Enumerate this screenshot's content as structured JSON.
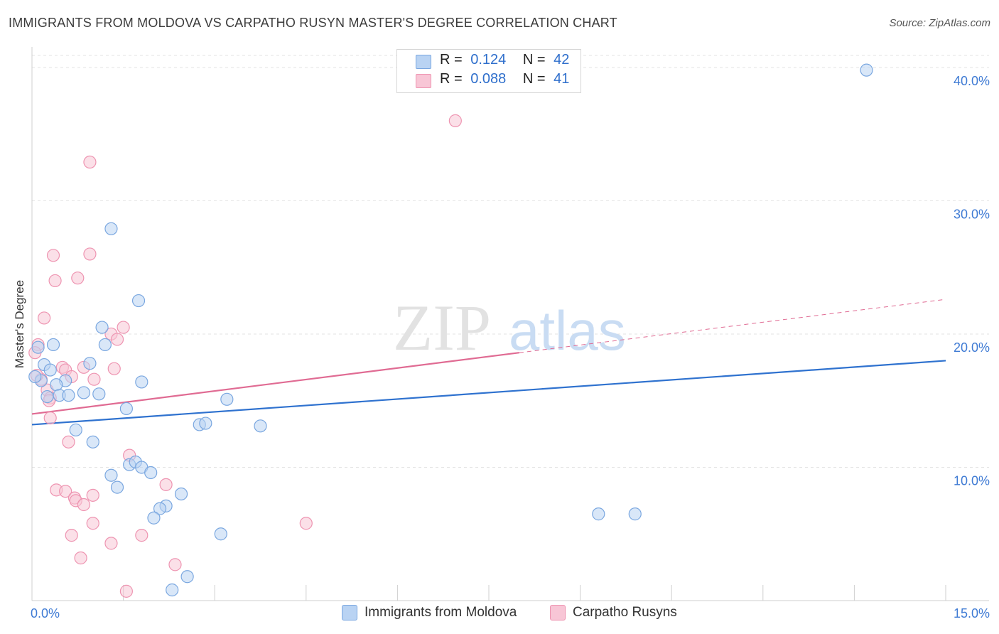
{
  "header": {
    "title": "IMMIGRANTS FROM MOLDOVA VS CARPATHO RUSYN MASTER'S DEGREE CORRELATION CHART",
    "source": "Source: ZipAtlas.com"
  },
  "legend_top": {
    "rows": [
      {
        "r_label": "R =",
        "r_value": "0.124",
        "n_label": "N =",
        "n_value": "42"
      },
      {
        "r_label": "R =",
        "r_value": "0.088",
        "n_label": "N =",
        "n_value": "41"
      }
    ]
  },
  "legend_bottom": {
    "items": [
      "Immigrants from Moldova",
      "Carpatho Rusyns"
    ]
  },
  "watermark": {
    "zip": "ZIP",
    "atlas": "atlas"
  },
  "colors": {
    "blue_fill": "#b9d3f3",
    "blue_stroke": "#7aa7e0",
    "blue_line": "#2f72cf",
    "pink_fill": "#f8c6d6",
    "pink_stroke": "#ee94b1",
    "pink_line": "#e06b93",
    "tick_text": "#3f7bd4",
    "grid": "#e3e3e3"
  },
  "chart_data": {
    "type": "scatter",
    "title": "IMMIGRANTS FROM MOLDOVA VS CARPATHO RUSYN MASTER'S DEGREE CORRELATION CHART",
    "xlabel": "",
    "ylabel": "Master's Degree",
    "xlim": [
      0,
      15
    ],
    "ylim": [
      0,
      40.9
    ],
    "x_tick_labels": [
      "0.0%",
      "15.0%"
    ],
    "y_ticks": [
      10,
      20,
      30,
      40
    ],
    "y_tick_labels": [
      "10.0%",
      "20.0%",
      "30.0%",
      "40.0%"
    ],
    "grid": "horizontal dashed",
    "legend_position": "top-center and bottom",
    "series": [
      {
        "name": "Immigrants from Moldova",
        "color": "blue",
        "R": 0.124,
        "N": 42,
        "trend": {
          "x0": 0,
          "y0": 13.2,
          "x1": 15,
          "y1": 18.0
        },
        "points": [
          [
            13.7,
            39.8
          ],
          [
            1.3,
            27.9
          ],
          [
            1.75,
            22.5
          ],
          [
            1.15,
            20.5
          ],
          [
            0.35,
            19.2
          ],
          [
            1.2,
            19.2
          ],
          [
            0.1,
            19.0
          ],
          [
            0.2,
            17.7
          ],
          [
            0.95,
            17.8
          ],
          [
            0.3,
            17.3
          ],
          [
            0.15,
            16.5
          ],
          [
            0.55,
            16.5
          ],
          [
            0.4,
            16.2
          ],
          [
            1.8,
            16.4
          ],
          [
            0.45,
            15.4
          ],
          [
            0.6,
            15.4
          ],
          [
            0.85,
            15.6
          ],
          [
            1.1,
            15.5
          ],
          [
            0.25,
            15.3
          ],
          [
            3.2,
            15.1
          ],
          [
            1.55,
            14.4
          ],
          [
            2.75,
            13.2
          ],
          [
            2.85,
            13.3
          ],
          [
            3.75,
            13.1
          ],
          [
            0.72,
            12.8
          ],
          [
            1.0,
            11.9
          ],
          [
            1.6,
            10.2
          ],
          [
            1.7,
            10.4
          ],
          [
            1.8,
            10.0
          ],
          [
            1.3,
            9.4
          ],
          [
            1.95,
            9.6
          ],
          [
            1.4,
            8.5
          ],
          [
            2.45,
            8.0
          ],
          [
            2.2,
            7.1
          ],
          [
            2.1,
            6.9
          ],
          [
            2.0,
            6.2
          ],
          [
            9.3,
            6.5
          ],
          [
            9.9,
            6.5
          ],
          [
            3.1,
            5.0
          ],
          [
            2.55,
            1.8
          ],
          [
            2.3,
            0.8
          ],
          [
            0.05,
            16.8
          ]
        ]
      },
      {
        "name": "Carpatho Rusyns",
        "color": "pink",
        "R": 0.088,
        "N": 41,
        "trend": {
          "x0": 0,
          "y0": 14.0,
          "x1": 8.0,
          "y1": 18.6,
          "dashed_to_x": 15,
          "dashed_to_y": 22.6
        },
        "points": [
          [
            6.95,
            36.0
          ],
          [
            0.95,
            32.9
          ],
          [
            0.35,
            25.9
          ],
          [
            0.95,
            26.0
          ],
          [
            0.38,
            24.0
          ],
          [
            0.75,
            24.2
          ],
          [
            0.2,
            21.2
          ],
          [
            1.5,
            20.5
          ],
          [
            1.3,
            20.0
          ],
          [
            1.4,
            19.6
          ],
          [
            0.1,
            19.2
          ],
          [
            0.05,
            18.6
          ],
          [
            0.85,
            17.5
          ],
          [
            0.5,
            17.5
          ],
          [
            0.55,
            17.3
          ],
          [
            1.35,
            17.4
          ],
          [
            0.65,
            16.8
          ],
          [
            0.15,
            16.6
          ],
          [
            0.25,
            15.8
          ],
          [
            0.3,
            15.2
          ],
          [
            0.28,
            15.0
          ],
          [
            0.3,
            13.7
          ],
          [
            0.6,
            11.9
          ],
          [
            1.6,
            10.9
          ],
          [
            2.2,
            8.7
          ],
          [
            0.4,
            8.3
          ],
          [
            0.55,
            8.2
          ],
          [
            1.0,
            7.9
          ],
          [
            0.7,
            7.7
          ],
          [
            0.72,
            7.5
          ],
          [
            0.85,
            7.2
          ],
          [
            4.5,
            5.8
          ],
          [
            1.0,
            5.8
          ],
          [
            0.65,
            4.9
          ],
          [
            1.8,
            4.9
          ],
          [
            1.3,
            4.3
          ],
          [
            0.8,
            3.2
          ],
          [
            2.35,
            2.7
          ],
          [
            1.55,
            0.7
          ],
          [
            0.08,
            16.9
          ],
          [
            1.02,
            16.6
          ]
        ]
      }
    ]
  }
}
